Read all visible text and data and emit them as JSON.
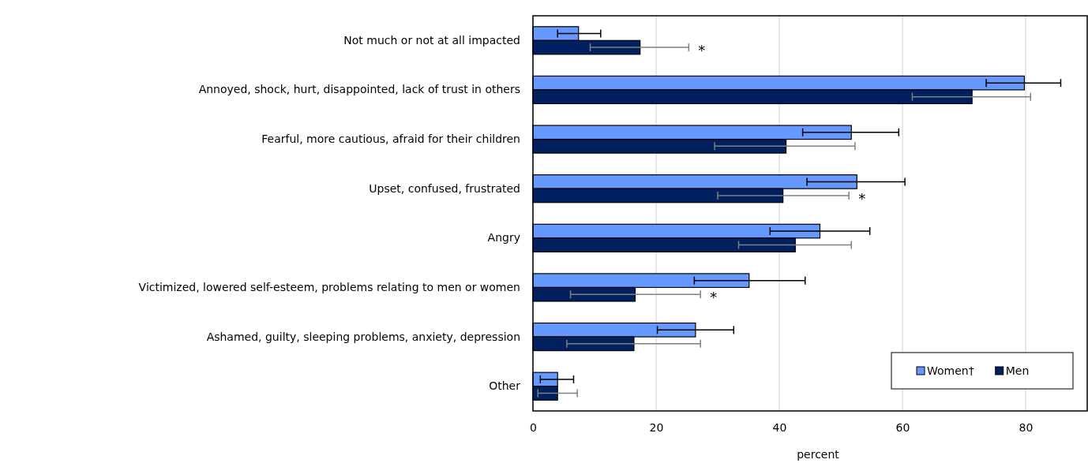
{
  "chart_data": {
    "type": "bar",
    "orientation": "horizontal",
    "xlabel": "percent",
    "categories": [
      "Not much or not at all impacted",
      "Annoyed, shock, hurt, disappointed, lack of trust in  others",
      "Fearful, more cautious, afraid for their children",
      "Upset, confused, frustrated",
      "Angry",
      "Victimized, lowered self-esteem, problems relating to men or women",
      "Ashamed, guilty, sleeping problems, anxiety, depression",
      "Other"
    ],
    "series": [
      {
        "name": "Women†",
        "color": "#6699ff",
        "values": [
          7.4,
          79.8,
          51.7,
          52.6,
          46.6,
          35.1,
          26.4,
          4.0
        ],
        "errors": [
          [
            4.0,
            11.0
          ],
          [
            73.6,
            85.7
          ],
          [
            43.8,
            59.4
          ],
          [
            44.5,
            60.4
          ],
          [
            38.5,
            54.7
          ],
          [
            26.2,
            44.2
          ],
          [
            20.2,
            32.6
          ],
          [
            1.2,
            6.6
          ]
        ]
      },
      {
        "name": "Men",
        "color": "#002060",
        "values": [
          17.4,
          71.3,
          41.1,
          40.6,
          42.6,
          16.6,
          16.4,
          4.0
        ],
        "errors": [
          [
            9.3,
            25.3
          ],
          [
            61.6,
            80.8
          ],
          [
            29.5,
            52.3
          ],
          [
            30.0,
            51.3
          ],
          [
            33.4,
            51.7
          ],
          [
            6.1,
            27.2
          ],
          [
            5.5,
            27.2
          ],
          [
            0.8,
            7.2
          ]
        ]
      }
    ],
    "xlim": [
      0,
      90
    ],
    "xticks": [
      0,
      20,
      40,
      60,
      80
    ],
    "grid": "x",
    "legend": "bottom right",
    "annotations": [
      {
        "text": "*",
        "x": 25.3,
        "y": "Not much or not at all impacted"
      },
      {
        "text": "*",
        "x": 51.3,
        "y": "Upset, confused, frustrated"
      },
      {
        "text": "*",
        "x": 27.2,
        "y": "Victimized, lowered self-esteem, problems relating to men or women"
      }
    ]
  }
}
